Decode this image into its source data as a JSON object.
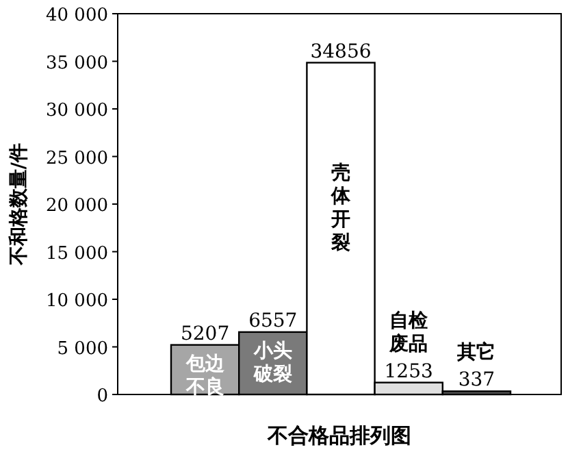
{
  "chart_data": {
    "type": "bar",
    "xlabel": "不合格品排列图",
    "ylabel": "不和格数量/件",
    "categories": [
      "包边不良",
      "小头破裂",
      "壳体开裂",
      "自检废品",
      "其它"
    ],
    "values": [
      5207,
      6557,
      34856,
      1253,
      337
    ],
    "colors": [
      "#a6a6a6",
      "#7a7a7a",
      "#ffffff",
      "#e0e0e0",
      "#555555"
    ],
    "value_labels": [
      "5207",
      "6557",
      "34856",
      "1253",
      "337"
    ],
    "ylim": [
      0,
      40000
    ],
    "yticks": [
      {
        "value": 0,
        "label": "0"
      },
      {
        "value": 5000,
        "label": "5 000"
      },
      {
        "value": 10000,
        "label": "10 000"
      },
      {
        "value": 15000,
        "label": "15 000"
      },
      {
        "value": 20000,
        "label": "20 000"
      },
      {
        "value": 25000,
        "label": "25 000"
      },
      {
        "value": 30000,
        "label": "30 000"
      },
      {
        "value": 35000,
        "label": "35 000"
      },
      {
        "value": 40000,
        "label": "40 000"
      }
    ],
    "grid": false
  }
}
